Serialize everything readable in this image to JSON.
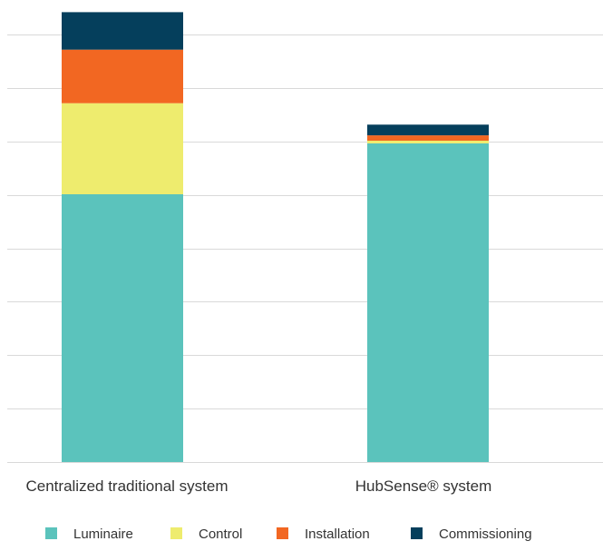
{
  "chart_data": {
    "type": "bar",
    "stacked": true,
    "title": "",
    "xlabel": "",
    "ylabel": "",
    "ylim": [
      0,
      8.3
    ],
    "grid": true,
    "legend_position": "bottom",
    "categories": [
      "Centralized traditional system",
      "HubSense® system"
    ],
    "series": [
      {
        "name": "Luminaire",
        "color": "#5BC3BC",
        "values": [
          5.0,
          5.95
        ]
      },
      {
        "name": "Control",
        "color": "#EEEC6E",
        "values": [
          1.7,
          0.05
        ]
      },
      {
        "name": "Installation",
        "color": "#F26722",
        "values": [
          1.0,
          0.1
        ]
      },
      {
        "name": "Commissioning",
        "color": "#053F5C",
        "values": [
          0.7,
          0.2
        ]
      }
    ]
  }
}
